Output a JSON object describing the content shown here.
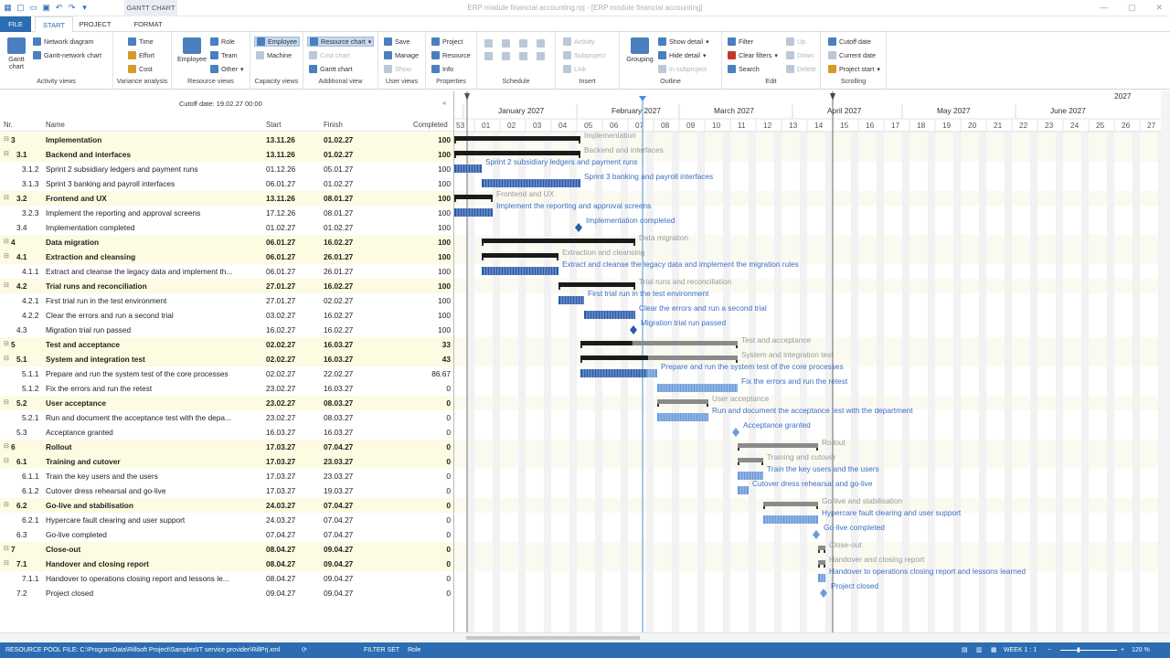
{
  "titlebar": {
    "title": "ERP module financial accounting.rpj - [ERP module financial accounting]",
    "context_tab": "GANTT CHART"
  },
  "tabs": {
    "file": "FILE",
    "start": "START",
    "project": "PROJECT",
    "format": "FORMAT"
  },
  "ribbon": {
    "activity_views": {
      "label": "Activity views",
      "gantt": "Gantt chart",
      "network": "Network diagram",
      "gantt_network": "Gantt-network chart"
    },
    "variance": {
      "label": "Variance analysis",
      "time": "Time",
      "effort": "Effort",
      "cost": "Cost"
    },
    "resource_views": {
      "label": "Resource views",
      "employee": "Employee",
      "role": "Role",
      "team": "Team",
      "other": "Other"
    },
    "capacity": {
      "label": "Capacity views",
      "employee": "Employee",
      "machine": "Machine"
    },
    "additional": {
      "label": "Additional view",
      "resource_chart": "Resource chart",
      "cost_chart": "Cost chart",
      "gantt_chart": "Gantt chart"
    },
    "user_views": {
      "label": "User views",
      "save": "Save",
      "manage": "Manage",
      "show": "Show"
    },
    "properties": {
      "label": "Properties",
      "project": "Project",
      "resource": "Resource",
      "info": "Info"
    },
    "schedule": {
      "label": "Schedule"
    },
    "insert": {
      "label": "Insert",
      "activity": "Activity",
      "subproject": "Subproject",
      "link": "Link"
    },
    "outline": {
      "label": "Outline",
      "grouping": "Grouping",
      "show_detail": "Show detail",
      "hide_detail": "Hide detail",
      "in_subproject": "In subproject"
    },
    "edit": {
      "label": "Edit",
      "filter": "Filter",
      "clear_filters": "Clear filters",
      "search": "Search",
      "up": "Up",
      "down": "Down",
      "delete": "Delete"
    },
    "scrolling": {
      "label": "Scrolling",
      "cutoff_date": "Cutoff date",
      "current_date": "Current date",
      "project_start": "Project start"
    }
  },
  "cutoff": "Cutoff date: 19.02.27 00:00",
  "columns": {
    "nr": "Nr.",
    "name": "Name",
    "start": "Start",
    "finish": "Finish",
    "completed": "Completed"
  },
  "rows": [
    {
      "nr": "3",
      "name": "Implementation",
      "start": "13.11.26",
      "finish": "01.02.27",
      "completed": "100",
      "summary": true,
      "level": 0
    },
    {
      "nr": "3.1",
      "name": "Backend and interfaces",
      "start": "13.11.26",
      "finish": "01.02.27",
      "completed": "100",
      "summary": true,
      "level": 1
    },
    {
      "nr": "3.1.2",
      "name": "Sprint 2 subsidiary ledgers and payment runs",
      "start": "01.12.26",
      "finish": "05.01.27",
      "completed": "100",
      "summary": false,
      "level": 2
    },
    {
      "nr": "3.1.3",
      "name": "Sprint 3 banking and payroll interfaces",
      "start": "06.01.27",
      "finish": "01.02.27",
      "completed": "100",
      "summary": false,
      "level": 2
    },
    {
      "nr": "3.2",
      "name": "Frontend and UX",
      "start": "13.11.26",
      "finish": "08.01.27",
      "completed": "100",
      "summary": true,
      "level": 1
    },
    {
      "nr": "3.2.3",
      "name": "Implement the reporting and approval screens",
      "start": "17.12.26",
      "finish": "08.01.27",
      "completed": "100",
      "summary": false,
      "level": 2
    },
    {
      "nr": "3.4",
      "name": "Implementation completed",
      "start": "01.02.27",
      "finish": "01.02.27",
      "completed": "100",
      "summary": false,
      "level": 1
    },
    {
      "nr": "4",
      "name": "Data migration",
      "start": "06.01.27",
      "finish": "16.02.27",
      "completed": "100",
      "summary": true,
      "level": 0
    },
    {
      "nr": "4.1",
      "name": "Extraction and cleansing",
      "start": "06.01.27",
      "finish": "26.01.27",
      "completed": "100",
      "summary": true,
      "level": 1
    },
    {
      "nr": "4.1.1",
      "name": "Extract and cleanse the legacy data and implement th...",
      "start": "06.01.27",
      "finish": "26.01.27",
      "completed": "100",
      "summary": false,
      "level": 2
    },
    {
      "nr": "4.2",
      "name": "Trial runs and reconciliation",
      "start": "27.01.27",
      "finish": "16.02.27",
      "completed": "100",
      "summary": true,
      "level": 1
    },
    {
      "nr": "4.2.1",
      "name": "First trial run in the test environment",
      "start": "27.01.27",
      "finish": "02.02.27",
      "completed": "100",
      "summary": false,
      "level": 2
    },
    {
      "nr": "4.2.2",
      "name": "Clear the errors and run a second trial",
      "start": "03.02.27",
      "finish": "16.02.27",
      "completed": "100",
      "summary": false,
      "level": 2
    },
    {
      "nr": "4.3",
      "name": "Migration trial run passed",
      "start": "16.02.27",
      "finish": "16.02.27",
      "completed": "100",
      "summary": false,
      "level": 1
    },
    {
      "nr": "5",
      "name": "Test and acceptance",
      "start": "02.02.27",
      "finish": "16.03.27",
      "completed": "33",
      "summary": true,
      "level": 0
    },
    {
      "nr": "5.1",
      "name": "System and integration test",
      "start": "02.02.27",
      "finish": "16.03.27",
      "completed": "43",
      "summary": true,
      "level": 1
    },
    {
      "nr": "5.1.1",
      "name": "Prepare and run the system test of the core processes",
      "start": "02.02.27",
      "finish": "22.02.27",
      "completed": "86.67",
      "summary": false,
      "level": 2
    },
    {
      "nr": "5.1.2",
      "name": "Fix the errors and run the retest",
      "start": "23.02.27",
      "finish": "16.03.27",
      "completed": "0",
      "summary": false,
      "level": 2
    },
    {
      "nr": "5.2",
      "name": "User acceptance",
      "start": "23.02.27",
      "finish": "08.03.27",
      "completed": "0",
      "summary": true,
      "level": 1
    },
    {
      "nr": "5.2.1",
      "name": "Run and document the acceptance test with the depa...",
      "start": "23.02.27",
      "finish": "08.03.27",
      "completed": "0",
      "summary": false,
      "level": 2
    },
    {
      "nr": "5.3",
      "name": "Acceptance granted",
      "start": "16.03.27",
      "finish": "16.03.27",
      "completed": "0",
      "summary": false,
      "level": 1
    },
    {
      "nr": "6",
      "name": "Rollout",
      "start": "17.03.27",
      "finish": "07.04.27",
      "completed": "0",
      "summary": true,
      "level": 0
    },
    {
      "nr": "6.1",
      "name": "Training and cutover",
      "start": "17.03.27",
      "finish": "23.03.27",
      "completed": "0",
      "summary": true,
      "level": 1
    },
    {
      "nr": "6.1.1",
      "name": "Train the key users and the users",
      "start": "17.03.27",
      "finish": "23.03.27",
      "completed": "0",
      "summary": false,
      "level": 2
    },
    {
      "nr": "6.1.2",
      "name": "Cutover dress rehearsal and go-live",
      "start": "17.03.27",
      "finish": "19.03.27",
      "completed": "0",
      "summary": false,
      "level": 2
    },
    {
      "nr": "6.2",
      "name": "Go-live and stabilisation",
      "start": "24.03.27",
      "finish": "07.04.27",
      "completed": "0",
      "summary": true,
      "level": 1
    },
    {
      "nr": "6.2.1",
      "name": "Hypercare fault clearing and user support",
      "start": "24.03.27",
      "finish": "07.04.27",
      "completed": "0",
      "summary": false,
      "level": 2
    },
    {
      "nr": "6.3",
      "name": "Go-live completed",
      "start": "07.04.27",
      "finish": "07.04.27",
      "completed": "0",
      "summary": false,
      "level": 1
    },
    {
      "nr": "7",
      "name": "Close-out",
      "start": "08.04.27",
      "finish": "09.04.27",
      "completed": "0",
      "summary": true,
      "level": 0
    },
    {
      "nr": "7.1",
      "name": "Handover and closing report",
      "start": "08.04.27",
      "finish": "09.04.27",
      "completed": "0",
      "summary": true,
      "level": 1
    },
    {
      "nr": "7.1.1",
      "name": "Handover to operations closing report and lessons le...",
      "start": "08.04.27",
      "finish": "09.04.27",
      "completed": "0",
      "summary": false,
      "level": 2
    },
    {
      "nr": "7.2",
      "name": "Project closed",
      "start": "09.04.27",
      "finish": "09.04.27",
      "completed": "0",
      "summary": false,
      "level": 1
    }
  ],
  "gantt": {
    "year_label": "2027",
    "months": [
      "January 2027",
      "February 2027",
      "March 2027",
      "April 2027",
      "May 2027",
      "June 2027"
    ],
    "weeks": [
      "53",
      "01",
      "02",
      "03",
      "04",
      "05",
      "06",
      "07",
      "08",
      "09",
      "10",
      "11",
      "12",
      "13",
      "14",
      "15",
      "16",
      "17",
      "18",
      "19",
      "20",
      "21",
      "22",
      "23",
      "24",
      "25",
      "26",
      "27"
    ],
    "bar_labels": [
      "Implementation",
      "Backend and interfaces",
      "Sprint 2 subsidiary ledgers and payment runs",
      "Sprint 3 banking and payroll interfaces",
      "Frontend and UX",
      "Implement the reporting and approval screens",
      "Implementation completed",
      "Data migration",
      "Extraction and cleansing",
      "Extract and cleanse the legacy data and implement the migration rules",
      "Trial runs and reconciliation",
      "First trial run in the test environment",
      "Clear the errors and run a second trial",
      "Migration trial run passed",
      "Test and acceptance",
      "System and integration test",
      "Prepare and run the system test of the core processes",
      "Fix the errors and run the retest",
      "User acceptance",
      "Run and document the acceptance test with the department",
      "Acceptance granted",
      "Rollout",
      "Training and cutover",
      "Train the key users and the users",
      "Cutover dress rehearsal and go-live",
      "Go-live and stabilisation",
      "Hypercare fault clearing and user support",
      "Go-live completed",
      "Close-out",
      "Handover and closing report",
      "Handover to operations closing report and lessons learned",
      "Project closed"
    ],
    "colors": {
      "summary_done": "#1a1a1a",
      "summary_open": "#8a8a8a",
      "task_done": "#2b5aa8",
      "task_open": "#6b9bd8",
      "label_task": "#3a6fc4",
      "label_summary": "#9a9a9a",
      "cutoff_line": "#4a90d9"
    }
  },
  "status": {
    "pool": "RESOURCE POOL FILE: C:\\ProgramData\\Rillsoft Project\\Samples\\IT service provider\\RillPrj.xml",
    "filter": "FILTER SET",
    "role": "Role",
    "week": "WEEK 1 : 1",
    "zoom": "120 %"
  }
}
